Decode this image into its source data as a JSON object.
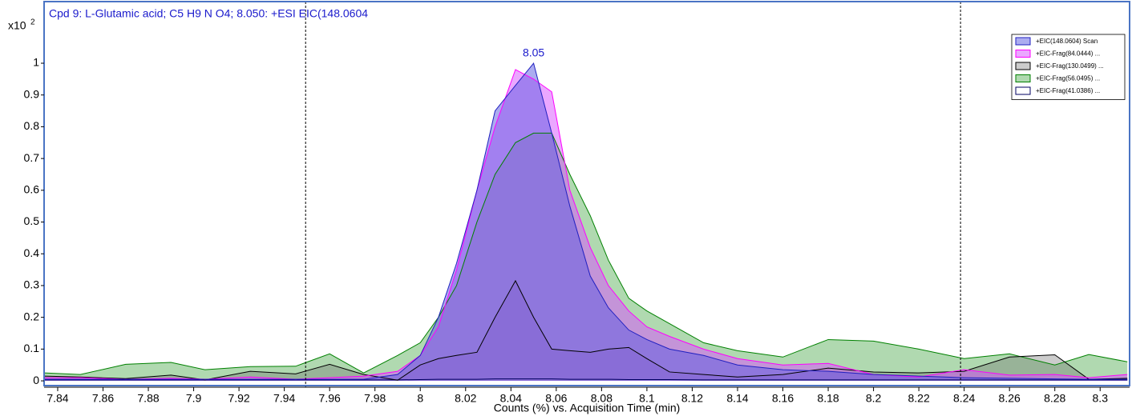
{
  "chart_data": {
    "type": "line",
    "title": "Cpd 9: L-Glutamic acid; C5 H9 N O4; 8.050: +ESI EIC(148.0604",
    "x_label": "Counts (%) vs. Acquisition Time (min)",
    "y_multiplier": "x10",
    "y_exponent": "2",
    "x": [
      7.834,
      7.85,
      7.87,
      7.89,
      7.905,
      7.925,
      7.945,
      7.96,
      7.975,
      7.99,
      8.0,
      8.008,
      8.016,
      8.025,
      8.033,
      8.042,
      8.05,
      8.058,
      8.066,
      8.075,
      8.083,
      8.092,
      8.1,
      8.11,
      8.125,
      8.14,
      8.16,
      8.18,
      8.2,
      8.22,
      8.24,
      8.26,
      8.28,
      8.295,
      8.312
    ],
    "series": [
      {
        "name": "+EIC(148.0604) Scan",
        "color": "#2020c0",
        "fill": "rgba(90,90,225,0.5)",
        "values": [
          0.005,
          0.005,
          0.005,
          0.005,
          0.005,
          0.005,
          0.005,
          0.005,
          0.005,
          0.02,
          0.08,
          0.2,
          0.37,
          0.6,
          0.85,
          0.93,
          1.0,
          0.78,
          0.55,
          0.33,
          0.23,
          0.16,
          0.13,
          0.1,
          0.08,
          0.05,
          0.035,
          0.03,
          0.02,
          0.015,
          0.01,
          0.008,
          0.006,
          0.005,
          0.005
        ]
      },
      {
        "name": "+EIC-Frag(84.0444) ...",
        "color": "#ff00ff",
        "fill": "rgba(215,80,255,0.5)",
        "values": [
          0.01,
          0.01,
          0.005,
          0.008,
          0.005,
          0.012,
          0.005,
          0.01,
          0.015,
          0.03,
          0.08,
          0.17,
          0.35,
          0.6,
          0.8,
          0.98,
          0.95,
          0.91,
          0.6,
          0.42,
          0.3,
          0.22,
          0.17,
          0.14,
          0.1,
          0.07,
          0.05,
          0.055,
          0.02,
          0.012,
          0.035,
          0.018,
          0.02,
          0.01,
          0.02
        ]
      },
      {
        "name": "+EIC-Frag(130.0499) ...",
        "color": "#000000",
        "fill": "rgba(110,110,110,0.35)",
        "values": [
          0.015,
          0.012,
          0.007,
          0.018,
          0.003,
          0.03,
          0.022,
          0.052,
          0.02,
          0.002,
          0.05,
          0.07,
          0.08,
          0.09,
          0.2,
          0.315,
          0.2,
          0.1,
          0.095,
          0.09,
          0.1,
          0.105,
          0.07,
          0.028,
          0.02,
          0.012,
          0.02,
          0.04,
          0.028,
          0.025,
          0.03,
          0.075,
          0.082,
          0.005,
          0.008
        ]
      },
      {
        "name": "+EIC-Frag(56.0495) ...",
        "color": "#008000",
        "fill": "rgba(80,170,80,0.45)",
        "values": [
          0.025,
          0.02,
          0.052,
          0.058,
          0.035,
          0.045,
          0.046,
          0.085,
          0.025,
          0.08,
          0.12,
          0.2,
          0.3,
          0.5,
          0.65,
          0.75,
          0.78,
          0.78,
          0.65,
          0.52,
          0.38,
          0.26,
          0.22,
          0.18,
          0.12,
          0.095,
          0.075,
          0.13,
          0.125,
          0.1,
          0.07,
          0.085,
          0.05,
          0.083,
          0.06
        ]
      },
      {
        "name": "+EIC-Frag(41.0386) ...",
        "color": "#000060",
        "fill": "rgba(255,255,255,0.6)",
        "values": [
          0.003,
          0.003,
          0.003,
          0.003,
          0.003,
          0.003,
          0.003,
          0.003,
          0.003,
          0.003,
          0.004,
          0.005,
          0.005,
          0.005,
          0.006,
          0.006,
          0.006,
          0.006,
          0.005,
          0.005,
          0.005,
          0.004,
          0.004,
          0.004,
          0.003,
          0.003,
          0.003,
          0.003,
          0.003,
          0.003,
          0.003,
          0.003,
          0.003,
          0.003,
          0.003
        ]
      }
    ],
    "annotation": {
      "text": "8.05",
      "x": 8.05,
      "y": 1.0
    },
    "markers": [
      7.9494,
      8.2384
    ],
    "xlim": [
      7.834,
      8.313
    ],
    "ylim": [
      -0.02,
      1.194
    ],
    "xticks": [
      7.84,
      7.86,
      7.88,
      7.9,
      7.92,
      7.94,
      7.96,
      7.98,
      8,
      8.02,
      8.04,
      8.06,
      8.08,
      8.1,
      8.12,
      8.14,
      8.16,
      8.18,
      8.2,
      8.22,
      8.24,
      8.26,
      8.28,
      8.3
    ],
    "yticks": [
      0,
      0.1,
      0.2,
      0.3,
      0.4,
      0.5,
      0.6,
      0.7,
      0.8,
      0.9,
      1
    ],
    "legend": "upper right"
  }
}
